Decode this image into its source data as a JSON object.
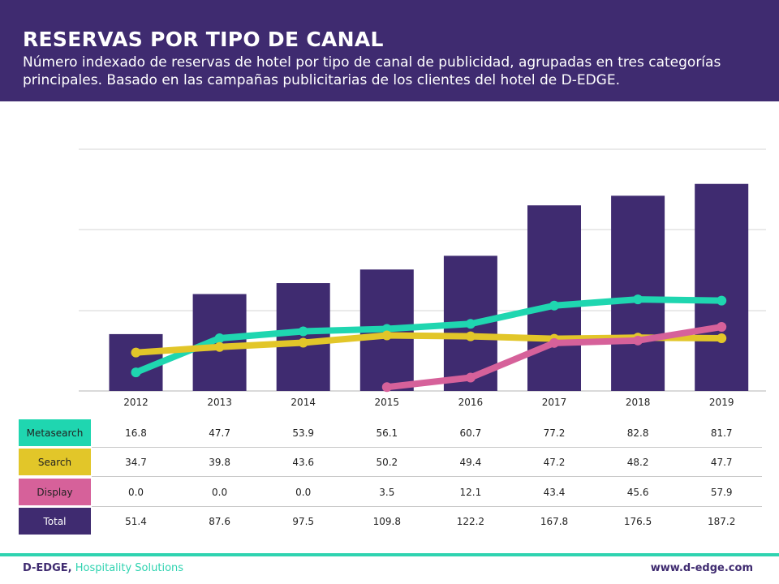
{
  "header": {
    "title": "RESERVAS POR TIPO DE CANAL",
    "subtitle": "Número indexado de reservas de hotel por tipo de canal de publicidad, agrupadas en tres categorías principales. Basado en las campañas publicitarias de los clientes del hotel de D-EDGE."
  },
  "chart_data": {
    "type": "bar",
    "categories": [
      "2012",
      "2013",
      "2014",
      "2015",
      "2016",
      "2017",
      "2018",
      "2019"
    ],
    "ylim": [
      0,
      220
    ],
    "grid": true,
    "series": [
      {
        "name": "Metasearch",
        "type": "line",
        "color": "#1fd6b0",
        "values": [
          16.8,
          47.7,
          53.9,
          56.1,
          60.7,
          77.2,
          82.8,
          81.7
        ],
        "display": [
          "16.8",
          "47.7",
          "53.9",
          "56.1",
          "60.7",
          "77.2",
          "82.8",
          "81.7"
        ]
      },
      {
        "name": "Search",
        "type": "line",
        "color": "#e2c629",
        "values": [
          34.7,
          39.8,
          43.6,
          50.2,
          49.4,
          47.2,
          48.2,
          47.7
        ],
        "display": [
          "34.7",
          "39.8",
          "43.6",
          "50.2",
          "49.4",
          "47.2",
          "48.2",
          "47.7"
        ]
      },
      {
        "name": "Display",
        "type": "line",
        "color": "#d6619a",
        "values": [
          0.0,
          0.0,
          0.0,
          3.5,
          12.1,
          43.4,
          45.6,
          57.9
        ],
        "display": [
          "0.0",
          "0.0",
          "0.0",
          "3.5",
          "12.1",
          "43.4",
          "45.6",
          "57.9"
        ],
        "line_starts_at": "2015"
      },
      {
        "name": "Total",
        "type": "bar",
        "color": "#3f2b70",
        "values": [
          51.4,
          87.6,
          97.5,
          109.8,
          122.2,
          167.8,
          176.5,
          187.2
        ],
        "display": [
          "51.4",
          "87.6",
          "97.5",
          "109.8",
          "122.2",
          "167.8",
          "176.5",
          "187.2"
        ]
      }
    ]
  },
  "footer": {
    "brand_name": "D-EDGE,",
    "brand_tag": "Hospitality Solutions",
    "website": "www.d-edge.com"
  },
  "colors": {
    "header_bg": "#3f2b70",
    "accent_teal": "#2fd3b0"
  }
}
